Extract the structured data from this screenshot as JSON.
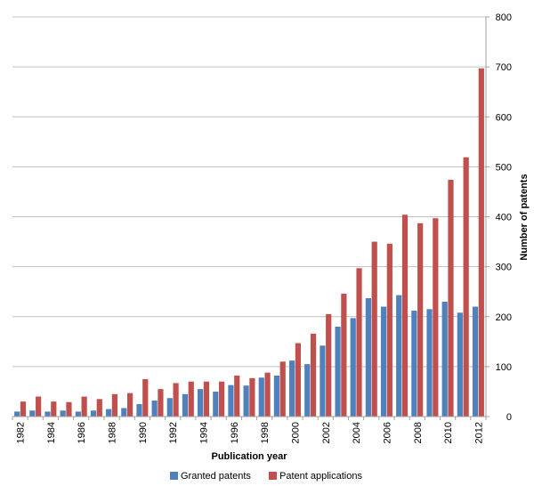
{
  "chart_data": {
    "type": "bar",
    "title": "",
    "xlabel": "Publication year",
    "ylabel": "Number of patents",
    "ylim": [
      0,
      800
    ],
    "yticks": [
      0,
      100,
      200,
      300,
      400,
      500,
      600,
      700,
      800
    ],
    "grid": true,
    "y_axis_side": "right",
    "legend_position": "bottom",
    "categories": [
      "1982",
      "1983",
      "1984",
      "1985",
      "1986",
      "1987",
      "1988",
      "1989",
      "1990",
      "1991",
      "1992",
      "1993",
      "1994",
      "1995",
      "1996",
      "1997",
      "1998",
      "1999",
      "2000",
      "2001",
      "2002",
      "2003",
      "2004",
      "2005",
      "2006",
      "2007",
      "2008",
      "2009",
      "2010",
      "2011",
      "2012"
    ],
    "tick_labels": [
      "1982",
      "1984",
      "1986",
      "1988",
      "1990",
      "1992",
      "1994",
      "1996",
      "1998",
      "2000",
      "2002",
      "2004",
      "2006",
      "2008",
      "2010",
      "2012"
    ],
    "series": [
      {
        "name": "Granted patents",
        "color": "#4F81BD",
        "values": [
          10,
          12,
          10,
          12,
          10,
          12,
          15,
          17,
          25,
          32,
          37,
          45,
          55,
          50,
          63,
          62,
          78,
          82,
          112,
          105,
          142,
          180,
          197,
          237,
          220,
          243,
          212,
          215,
          230,
          208,
          220
        ]
      },
      {
        "name": "Patent applications",
        "color": "#C0504D",
        "values": [
          30,
          40,
          30,
          29,
          40,
          35,
          45,
          47,
          75,
          55,
          67,
          70,
          70,
          70,
          82,
          77,
          88,
          110,
          147,
          166,
          205,
          246,
          297,
          350,
          346,
          404,
          387,
          397,
          474,
          519,
          697
        ]
      }
    ]
  },
  "colors": {
    "gridline": "#c0c0c0",
    "axis": "#a0a0a0"
  }
}
